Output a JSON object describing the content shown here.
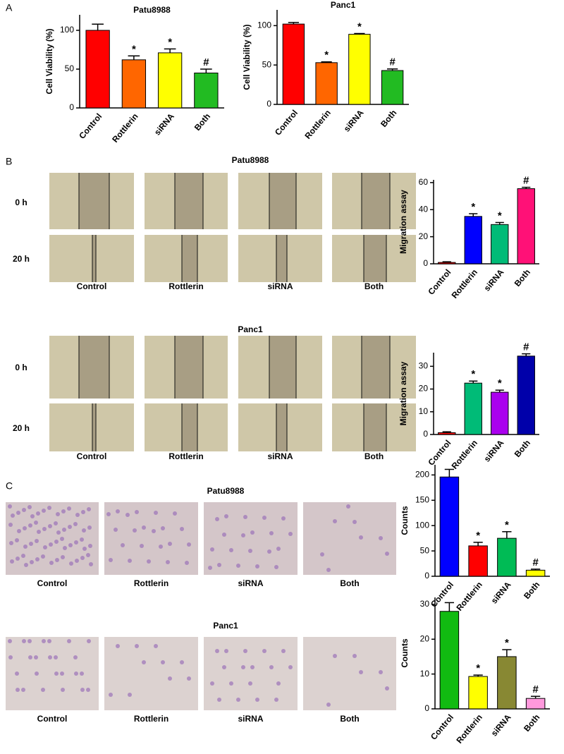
{
  "chart_data": [
    {
      "type": "bar",
      "title": "Patu8988",
      "y_label": "Cell Viability (%)",
      "categories": [
        "Control",
        "Rottlerin",
        "siRNA",
        "Both"
      ],
      "values": [
        100,
        62,
        71,
        45
      ],
      "errors": [
        8,
        5,
        5,
        5
      ],
      "annotations": [
        null,
        "*",
        "*",
        "#"
      ],
      "colors": [
        "#ff0000",
        "#ff6600",
        "#ffff00",
        "#22bb22"
      ],
      "ylim": [
        0,
        120
      ],
      "yticks": [
        0,
        50,
        100
      ]
    },
    {
      "type": "bar",
      "title": "Panc1",
      "y_label": "Cell Viability (%)",
      "categories": [
        "Control",
        "Rottlerin",
        "siRNA",
        "Both"
      ],
      "values": [
        102,
        53,
        89,
        43
      ],
      "errors": [
        2,
        1,
        1,
        2
      ],
      "annotations": [
        null,
        "*",
        "*",
        "#"
      ],
      "colors": [
        "#ff0000",
        "#ff6600",
        "#ffff00",
        "#22bb22"
      ],
      "ylim": [
        0,
        120
      ],
      "yticks": [
        0,
        50,
        100
      ]
    },
    {
      "type": "bar",
      "y_label": "Migration assay",
      "categories": [
        "Control",
        "Rottlerin",
        "siRNA",
        "Both"
      ],
      "values": [
        1,
        35,
        29,
        55.5
      ],
      "errors": [
        0.5,
        2,
        1.5,
        1
      ],
      "annotations": [
        null,
        "*",
        "*",
        "#"
      ],
      "colors": [
        "#ff0000",
        "#0000ff",
        "#00bb77",
        "#ff1177"
      ],
      "ylim": [
        0,
        62
      ],
      "yticks": [
        0,
        20,
        40,
        60
      ]
    },
    {
      "type": "bar",
      "y_label": "Migration assay",
      "categories": [
        "Control",
        "Rottlerin",
        "siRNA",
        "Both"
      ],
      "values": [
        0.8,
        22.6,
        18.6,
        34.5
      ],
      "errors": [
        0.4,
        0.9,
        0.9,
        1
      ],
      "annotations": [
        null,
        "*",
        "*",
        "#"
      ],
      "colors": [
        "#ff0000",
        "#00bb77",
        "#aa00ee",
        "#0000aa"
      ],
      "ylim": [
        0,
        36
      ],
      "yticks": [
        0,
        10,
        20,
        30
      ]
    },
    {
      "type": "bar",
      "y_label": "Counts",
      "categories": [
        "Control",
        "Rottlerin",
        "siRNA",
        "Both"
      ],
      "values": [
        196,
        60,
        75,
        12
      ],
      "errors": [
        15,
        7,
        13,
        2
      ],
      "annotations": [
        null,
        "*",
        "*",
        "#"
      ],
      "colors": [
        "#0000ff",
        "#ff0000",
        "#00bb55",
        "#ffff00"
      ],
      "ylim": [
        0,
        220
      ],
      "yticks": [
        0,
        50,
        100,
        150,
        200
      ]
    },
    {
      "type": "bar",
      "y_label": "Counts",
      "categories": [
        "Control",
        "Rottlerin",
        "siRNA",
        "Both"
      ],
      "values": [
        28,
        9.3,
        15,
        3
      ],
      "errors": [
        2.5,
        0.4,
        2,
        0.6
      ],
      "annotations": [
        null,
        "*",
        "*",
        "#"
      ],
      "colors": [
        "#11bb11",
        "#ffff00",
        "#888833",
        "#ff99dd"
      ],
      "ylim": [
        0,
        32
      ],
      "yticks": [
        0,
        10,
        20,
        30
      ]
    }
  ],
  "figure": {
    "panel_labels": [
      "A",
      "B",
      "C"
    ],
    "migration": {
      "titles": [
        "Patu8988",
        "Panc1"
      ],
      "timepoints": [
        "0 h",
        "20 h"
      ],
      "groups": [
        "Control",
        "Rottlerin",
        "siRNA",
        "Both"
      ]
    },
    "invasion": {
      "titles": [
        "Patu8988",
        "Panc1"
      ],
      "groups": [
        "Control",
        "Rottlerin",
        "siRNA",
        "Both"
      ]
    }
  }
}
